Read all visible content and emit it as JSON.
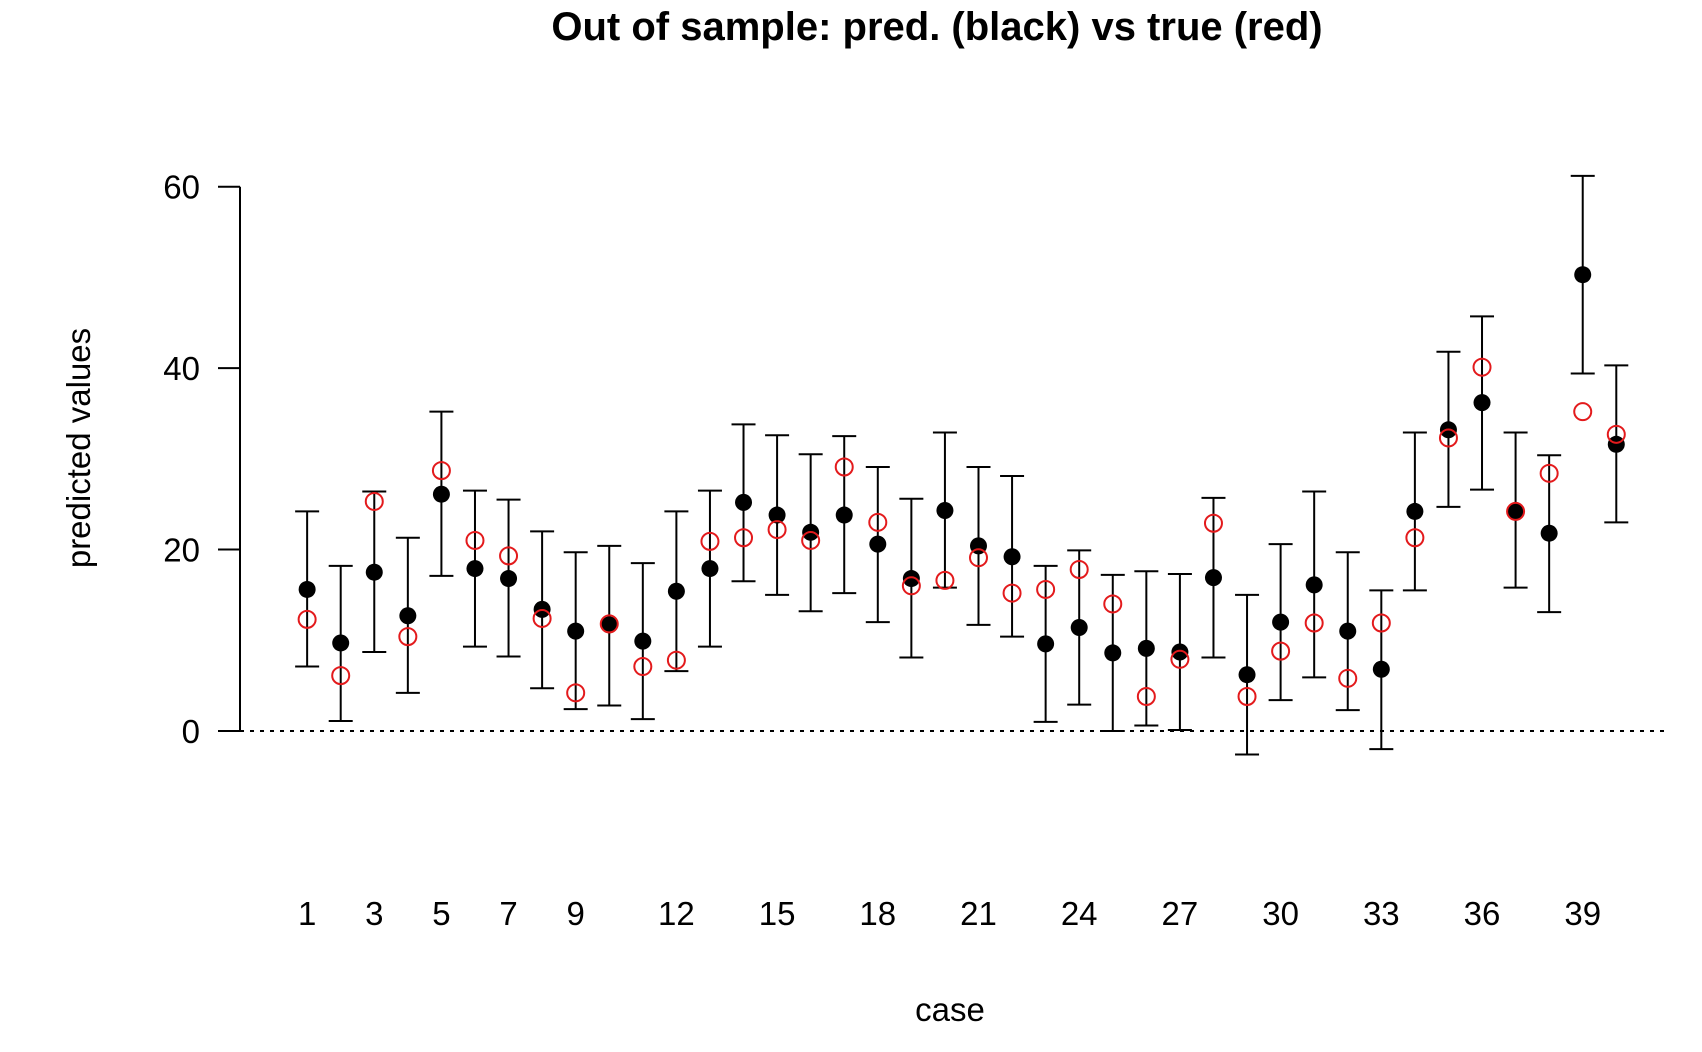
{
  "chart_data": {
    "type": "scatter",
    "title": "Out of sample: pred. (black) vs true (red)",
    "xlabel": "case",
    "ylabel": "predicted values",
    "ylim": [
      -15,
      70
    ],
    "xlim": [
      -1,
      41.6
    ],
    "y_ticks": [
      0,
      20,
      40,
      60
    ],
    "x_tick_positions": [
      1,
      3,
      5,
      7,
      9,
      12,
      15,
      18,
      21,
      24,
      27,
      30,
      33,
      36,
      39
    ],
    "x_tick_labels": [
      "1",
      "3",
      "5",
      "7",
      "9",
      "12",
      "15",
      "18",
      "21",
      "24",
      "27",
      "30",
      "33",
      "36",
      "39"
    ],
    "reference_line": {
      "y": 0,
      "style": "dotted"
    },
    "colors": {
      "predicted": "#000000",
      "true": "#e31a1c"
    },
    "series": [
      {
        "name": "pred.",
        "marker": "filled-circle",
        "x": [
          1,
          2,
          3,
          4,
          5,
          6,
          7,
          8,
          9,
          10,
          11,
          12,
          13,
          14,
          15,
          16,
          17,
          18,
          19,
          20,
          21,
          22,
          23,
          24,
          25,
          26,
          27,
          28,
          29,
          30,
          31,
          32,
          33,
          34,
          35,
          36,
          37,
          38,
          39,
          40
        ],
        "values": [
          15.6,
          9.7,
          17.5,
          12.7,
          26.1,
          17.9,
          16.8,
          13.4,
          11.0,
          11.7,
          9.9,
          15.4,
          17.9,
          25.2,
          23.8,
          21.9,
          23.8,
          20.6,
          16.8,
          24.3,
          20.4,
          19.2,
          9.6,
          11.4,
          8.6,
          9.1,
          8.7,
          16.9,
          6.2,
          12.0,
          16.1,
          11.0,
          6.8,
          24.2,
          33.2,
          36.2,
          24.2,
          21.8,
          50.3,
          31.6
        ],
        "lower": [
          7.1,
          1.1,
          8.7,
          4.2,
          17.1,
          9.3,
          8.2,
          4.7,
          2.4,
          2.8,
          1.3,
          6.6,
          9.3,
          16.5,
          15.0,
          13.2,
          15.2,
          12.0,
          8.1,
          15.8,
          11.7,
          10.4,
          1.0,
          2.9,
          0.0,
          0.6,
          0.1,
          8.1,
          -2.6,
          3.4,
          5.9,
          2.3,
          -2.0,
          15.5,
          24.7,
          26.6,
          15.8,
          13.1,
          39.4,
          23.0
        ],
        "upper": [
          24.2,
          18.2,
          26.4,
          21.3,
          35.2,
          26.5,
          25.5,
          22.0,
          19.7,
          20.4,
          18.5,
          24.2,
          26.5,
          33.8,
          32.6,
          30.5,
          32.5,
          29.1,
          25.6,
          32.9,
          29.1,
          28.1,
          18.2,
          19.9,
          17.2,
          17.6,
          17.3,
          25.7,
          15.0,
          20.6,
          26.4,
          19.7,
          15.5,
          32.9,
          41.8,
          45.7,
          32.9,
          30.4,
          61.2,
          40.3
        ]
      },
      {
        "name": "true",
        "marker": "open-circle",
        "x": [
          1,
          2,
          3,
          4,
          5,
          6,
          7,
          8,
          9,
          10,
          11,
          12,
          13,
          14,
          15,
          16,
          17,
          18,
          19,
          20,
          21,
          22,
          23,
          24,
          25,
          26,
          27,
          28,
          29,
          30,
          31,
          32,
          33,
          34,
          35,
          36,
          37,
          38,
          39,
          40
        ],
        "values": [
          12.3,
          6.1,
          25.3,
          10.4,
          28.7,
          21.0,
          19.3,
          12.4,
          4.2,
          11.8,
          7.1,
          7.8,
          20.9,
          21.3,
          22.2,
          21.0,
          29.1,
          23.0,
          16.0,
          16.6,
          19.1,
          15.2,
          15.6,
          17.8,
          14.0,
          3.8,
          7.9,
          22.9,
          3.8,
          8.8,
          11.9,
          5.8,
          11.9,
          21.3,
          32.3,
          40.1,
          24.2,
          28.4,
          35.2,
          32.7
        ]
      }
    ]
  }
}
